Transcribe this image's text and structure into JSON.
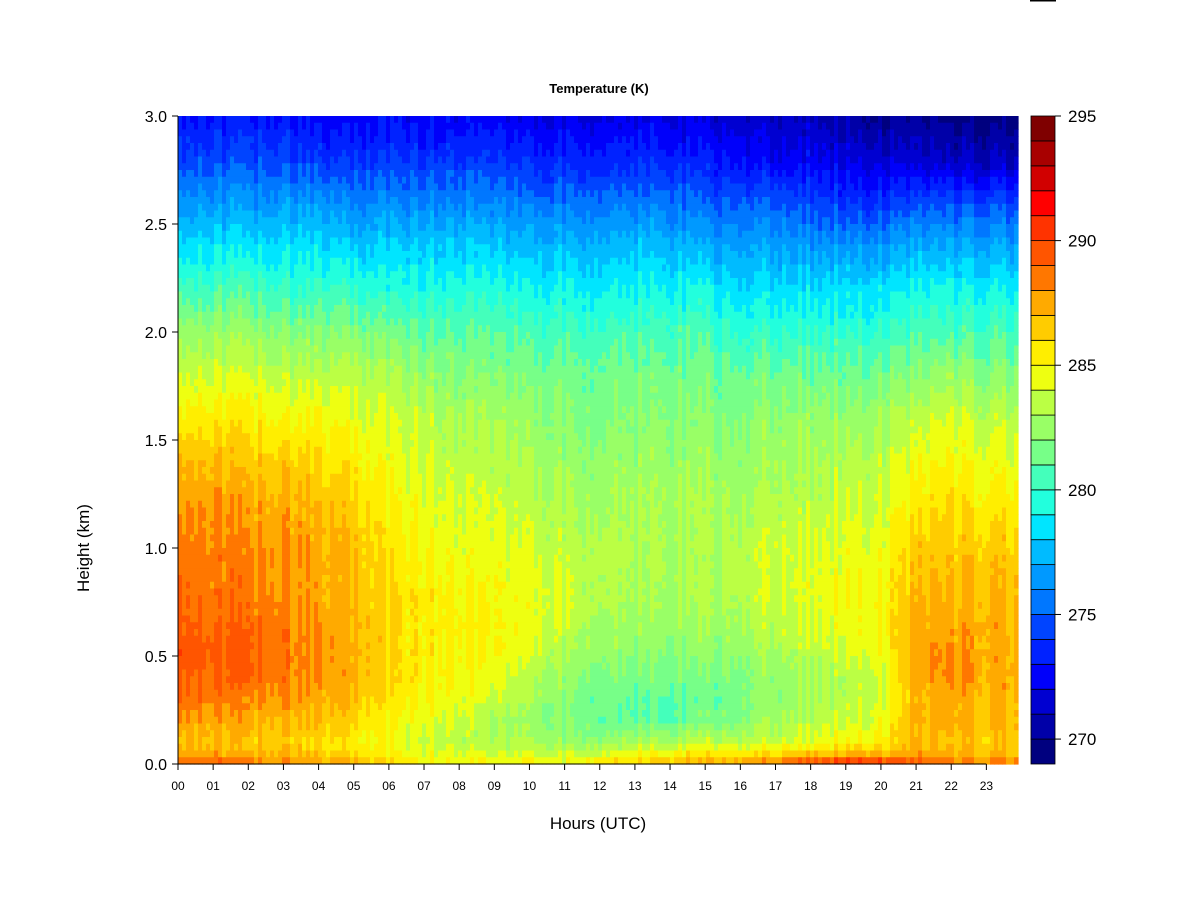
{
  "chart_data": {
    "type": "heatmap",
    "title": "Temperature (K)",
    "xlabel": "Hours (UTC)",
    "ylabel": "Height (km)",
    "xlim": [
      0,
      23.9
    ],
    "ylim": [
      0,
      3.0
    ],
    "x_ticks": [
      0,
      1,
      2,
      3,
      4,
      5,
      6,
      7,
      8,
      9,
      10,
      11,
      12,
      13,
      14,
      15,
      16,
      17,
      18,
      19,
      20,
      21,
      22,
      23
    ],
    "x_tick_labels": [
      "00",
      "01",
      "02",
      "03",
      "04",
      "05",
      "06",
      "07",
      "08",
      "09",
      "10",
      "11",
      "12",
      "13",
      "14",
      "15",
      "16",
      "17",
      "18",
      "19",
      "20",
      "21",
      "22",
      "23"
    ],
    "y_ticks": [
      0.0,
      0.5,
      1.0,
      1.5,
      2.0,
      2.5,
      3.0
    ],
    "y_tick_labels": [
      "0.0",
      "0.5",
      "1.0",
      "1.5",
      "2.0",
      "2.5",
      "3.0"
    ],
    "colorbar": {
      "min": 269,
      "max": 295,
      "step": 1,
      "ticks": [
        270,
        275,
        280,
        285,
        290,
        295
      ],
      "tick_labels": [
        "270",
        "275",
        "280",
        "285",
        "290",
        "295"
      ],
      "colors": [
        "#00007F",
        "#0000A8",
        "#0000D1",
        "#0000FA",
        "#0022FF",
        "#0044FF",
        "#0077FF",
        "#0099FF",
        "#00BBFF",
        "#00E5FF",
        "#22FFDD",
        "#44FFBB",
        "#77FF88",
        "#99FF66",
        "#BBFF44",
        "#EEFF11",
        "#FFEE00",
        "#FFCC00",
        "#FFAA00",
        "#FF7700",
        "#FF5500",
        "#FF3300",
        "#FF0000",
        "#D10000",
        "#A80000",
        "#7F0000"
      ]
    },
    "grid": false,
    "hours": [
      0,
      1,
      2,
      3,
      4,
      5,
      6,
      7,
      8,
      9,
      10,
      11,
      12,
      13,
      14,
      15,
      16,
      17,
      18,
      19,
      20,
      21,
      22,
      23
    ],
    "heights_km": [
      0.0,
      0.05,
      0.1,
      0.2,
      0.3,
      0.4,
      0.5,
      0.6,
      0.8,
      1.0,
      1.2,
      1.4,
      1.6,
      1.8,
      2.0,
      2.2,
      2.4,
      2.6,
      2.8,
      3.0
    ],
    "values_K": [
      [
        289.0,
        289.0,
        288.5,
        288.5,
        288.0,
        287.5,
        286.0,
        285.5,
        285.0,
        285.0,
        285.0,
        285.0,
        286.0,
        286.5,
        287.0,
        287.5,
        288.0,
        289.0,
        290.0,
        291.0,
        291.0,
        289.0,
        288.5,
        288.5
      ],
      [
        287.5,
        287.5,
        287.0,
        287.0,
        286.5,
        286.0,
        285.0,
        284.5,
        284.0,
        284.0,
        284.0,
        283.5,
        284.0,
        284.5,
        285.0,
        285.5,
        285.5,
        286.0,
        286.5,
        287.0,
        287.0,
        287.5,
        287.0,
        287.0
      ],
      [
        287.0,
        287.0,
        286.5,
        286.5,
        286.0,
        285.5,
        284.5,
        284.0,
        283.5,
        283.0,
        283.0,
        282.5,
        282.5,
        283.0,
        283.0,
        283.5,
        283.5,
        284.0,
        284.5,
        285.0,
        285.5,
        287.0,
        286.5,
        286.5
      ],
      [
        288.0,
        287.5,
        287.5,
        287.0,
        287.0,
        286.5,
        285.0,
        284.5,
        284.0,
        283.0,
        282.5,
        282.0,
        281.5,
        281.0,
        281.0,
        281.5,
        282.0,
        283.0,
        283.5,
        284.0,
        284.5,
        287.0,
        287.5,
        287.0
      ],
      [
        289.0,
        288.5,
        288.0,
        288.0,
        287.5,
        287.0,
        285.5,
        285.0,
        284.5,
        284.0,
        283.0,
        282.0,
        281.5,
        281.0,
        281.0,
        281.0,
        282.0,
        282.5,
        283.0,
        283.5,
        284.0,
        287.0,
        287.5,
        287.0
      ],
      [
        289.5,
        289.0,
        289.0,
        288.5,
        288.0,
        287.5,
        286.0,
        285.5,
        285.0,
        284.5,
        283.5,
        282.5,
        282.0,
        281.5,
        281.5,
        281.5,
        282.0,
        282.5,
        283.0,
        283.5,
        284.0,
        287.5,
        288.0,
        287.5
      ],
      [
        290.0,
        289.5,
        289.0,
        288.5,
        288.0,
        287.5,
        286.0,
        285.5,
        285.0,
        285.0,
        284.0,
        283.0,
        282.5,
        282.0,
        282.0,
        282.0,
        282.5,
        283.0,
        283.5,
        284.0,
        284.5,
        287.5,
        288.0,
        287.5
      ],
      [
        289.5,
        289.0,
        289.0,
        288.5,
        288.0,
        287.5,
        286.0,
        285.5,
        285.5,
        285.0,
        284.5,
        283.5,
        283.0,
        282.5,
        282.5,
        282.5,
        283.0,
        283.5,
        284.0,
        284.5,
        285.0,
        287.5,
        287.5,
        287.5
      ],
      [
        289.0,
        288.5,
        288.5,
        288.0,
        287.5,
        287.0,
        286.0,
        285.5,
        285.0,
        285.0,
        284.5,
        284.0,
        283.5,
        283.0,
        283.0,
        283.0,
        283.5,
        284.0,
        284.5,
        285.0,
        285.0,
        287.0,
        287.0,
        287.0
      ],
      [
        288.5,
        288.5,
        288.0,
        288.0,
        287.5,
        287.0,
        285.5,
        285.0,
        284.5,
        284.5,
        284.0,
        283.5,
        283.5,
        283.0,
        283.0,
        283.0,
        283.5,
        284.0,
        284.0,
        284.5,
        284.5,
        286.5,
        286.5,
        286.5
      ],
      [
        288.0,
        288.0,
        287.5,
        287.5,
        287.0,
        286.5,
        285.0,
        284.5,
        284.0,
        284.0,
        283.5,
        283.0,
        283.0,
        283.0,
        283.0,
        283.0,
        283.0,
        283.5,
        283.5,
        284.0,
        284.0,
        285.5,
        286.0,
        285.5
      ],
      [
        287.0,
        287.0,
        286.5,
        286.5,
        286.0,
        285.5,
        284.5,
        284.0,
        283.5,
        283.5,
        283.0,
        282.5,
        282.5,
        282.5,
        282.5,
        282.5,
        282.5,
        283.0,
        283.0,
        283.5,
        283.5,
        284.5,
        285.0,
        284.5
      ],
      [
        285.5,
        285.5,
        285.5,
        285.0,
        285.0,
        284.5,
        284.0,
        283.5,
        283.0,
        283.0,
        282.5,
        282.0,
        282.0,
        282.0,
        282.0,
        282.0,
        282.0,
        282.5,
        282.5,
        282.5,
        283.0,
        283.5,
        284.0,
        283.5
      ],
      [
        284.0,
        284.0,
        284.0,
        283.5,
        283.5,
        283.5,
        283.0,
        282.5,
        282.0,
        282.0,
        281.5,
        281.5,
        281.5,
        281.5,
        281.5,
        281.5,
        281.5,
        281.5,
        281.5,
        281.5,
        281.5,
        282.0,
        282.5,
        282.0
      ],
      [
        282.5,
        282.5,
        282.5,
        282.0,
        282.0,
        282.0,
        281.5,
        281.0,
        281.0,
        281.0,
        280.5,
        280.5,
        280.5,
        280.5,
        280.5,
        280.5,
        280.0,
        280.0,
        280.0,
        280.0,
        280.0,
        280.5,
        280.5,
        280.5
      ],
      [
        280.5,
        280.5,
        280.5,
        280.0,
        280.0,
        280.0,
        279.5,
        279.5,
        279.5,
        279.5,
        279.0,
        279.0,
        279.0,
        279.0,
        279.0,
        279.0,
        278.5,
        278.5,
        278.5,
        278.5,
        278.5,
        279.0,
        279.0,
        279.0
      ],
      [
        278.5,
        278.5,
        278.5,
        278.5,
        278.5,
        278.0,
        278.0,
        278.0,
        278.0,
        278.0,
        277.5,
        277.5,
        277.5,
        277.5,
        277.5,
        277.0,
        277.0,
        277.0,
        276.5,
        276.5,
        276.5,
        277.0,
        277.0,
        277.0
      ],
      [
        276.5,
        276.5,
        276.5,
        276.5,
        276.5,
        276.0,
        276.0,
        276.0,
        276.0,
        276.0,
        275.5,
        275.5,
        275.5,
        275.5,
        275.5,
        275.0,
        275.0,
        275.0,
        274.5,
        274.0,
        274.0,
        274.5,
        274.5,
        274.5
      ],
      [
        274.5,
        274.5,
        274.5,
        274.5,
        274.0,
        274.0,
        274.0,
        274.0,
        274.0,
        274.0,
        273.5,
        273.5,
        273.5,
        273.5,
        273.5,
        273.0,
        273.0,
        272.5,
        272.5,
        272.0,
        271.5,
        271.5,
        271.0,
        271.0
      ],
      [
        273.0,
        273.0,
        273.0,
        273.0,
        272.5,
        272.5,
        272.5,
        272.5,
        272.5,
        272.5,
        272.0,
        272.0,
        272.0,
        272.0,
        272.0,
        271.5,
        271.5,
        271.0,
        271.0,
        270.5,
        270.0,
        270.0,
        269.5,
        269.5
      ]
    ]
  }
}
